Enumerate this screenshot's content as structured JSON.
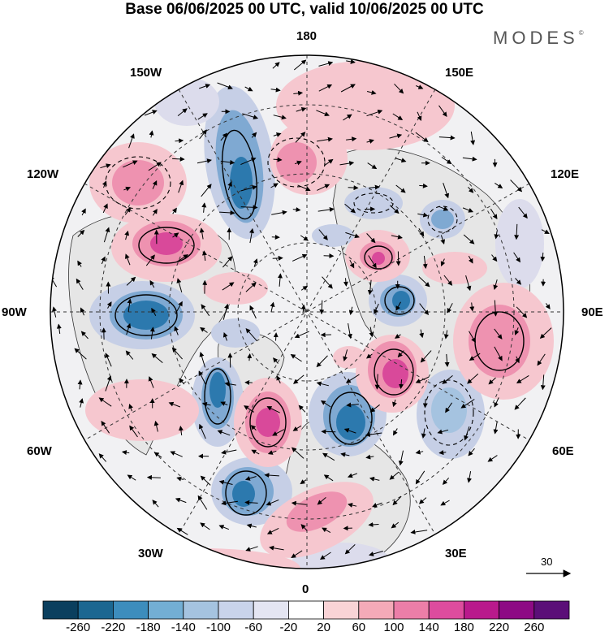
{
  "title": "Base 06/06/2025 00 UTC, valid 10/06/2025 00 UTC",
  "logo": "MODES",
  "logo_mark": "©",
  "longitude_labels": {
    "top": "180",
    "top_left": "150W",
    "top_right": "150E",
    "upper_left": "120W",
    "upper_right": "120E",
    "left": "90W",
    "right": "90E",
    "lower_left": "60W",
    "lower_right": "60E",
    "bottom_left": "30W",
    "bottom_right": "30E",
    "bottom": "0"
  },
  "reference_vector_label": "30",
  "colorbar": {
    "colors": [
      "#0b3f5e",
      "#1c6791",
      "#3d8dbd",
      "#73aed4",
      "#a5c3e0",
      "#c9d3ea",
      "#e4e5f2",
      "#ffffff",
      "#f9d3d6",
      "#f4aab8",
      "#ec7ea8",
      "#dd4c9e",
      "#b91a8c",
      "#8d0a84",
      "#5b0f78"
    ],
    "ticks": [
      "-260",
      "-220",
      "-180",
      "-140",
      "-100",
      "-60",
      "-20",
      "20",
      "60",
      "100",
      "140",
      "180",
      "220",
      "260"
    ]
  },
  "map": {
    "projection": "north-polar-stereographic",
    "field_colors": {
      "strong_negative": "#2c79ae",
      "negative": "#7fa9d2",
      "weak_negative": "#c6cfe6",
      "weak_positive": "#f6c7cf",
      "positive": "#ee92b0",
      "strong_positive": "#d9499a",
      "land_fill": "#e8e8e8"
    }
  }
}
